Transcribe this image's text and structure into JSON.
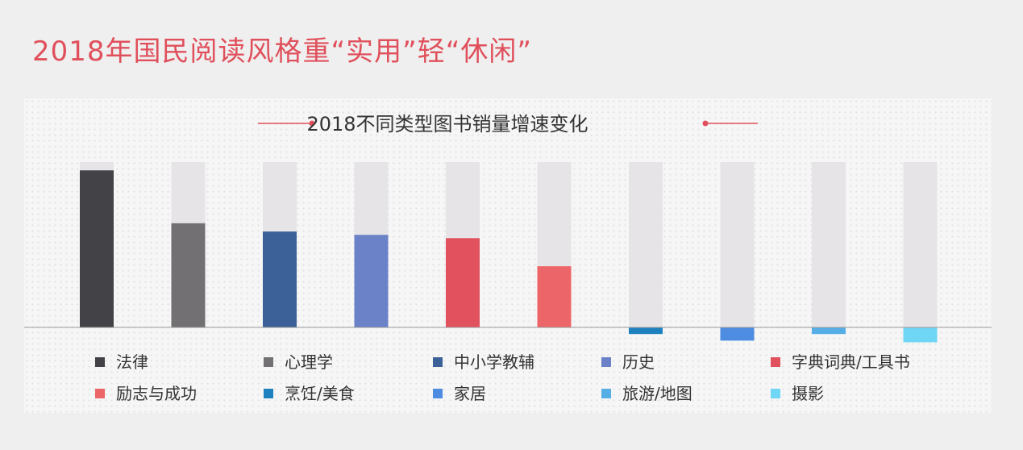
{
  "page": {
    "title": "2018年国民阅读风格重“实用”轻“休闲”"
  },
  "chart_data": {
    "type": "bar",
    "title": "2018不同类型图书销量增速变化",
    "xlabel": "",
    "ylabel": "",
    "ylim": [
      -0.1,
      1.0
    ],
    "categories": [
      "法律",
      "心理学",
      "中小学教辅",
      "历史",
      "字典词典/工具书",
      "励志与成功",
      "烹饪/美食",
      "家居",
      "旅游/地图",
      "摄影"
    ],
    "values": [
      0.95,
      0.63,
      0.58,
      0.56,
      0.54,
      0.37,
      -0.04,
      -0.08,
      -0.04,
      -0.09
    ],
    "colors": [
      "#434246",
      "#727072",
      "#3c6198",
      "#6b82c8",
      "#e1515e",
      "#ec6568",
      "#1e81bf",
      "#4d8ce1",
      "#55aee6",
      "#6fd6f6"
    ],
    "track_color": "#e6e4e7",
    "grid": false,
    "legend_position": "bottom"
  },
  "decor": {
    "accent_color": "#e0505c",
    "title_color": "#e0505c"
  }
}
